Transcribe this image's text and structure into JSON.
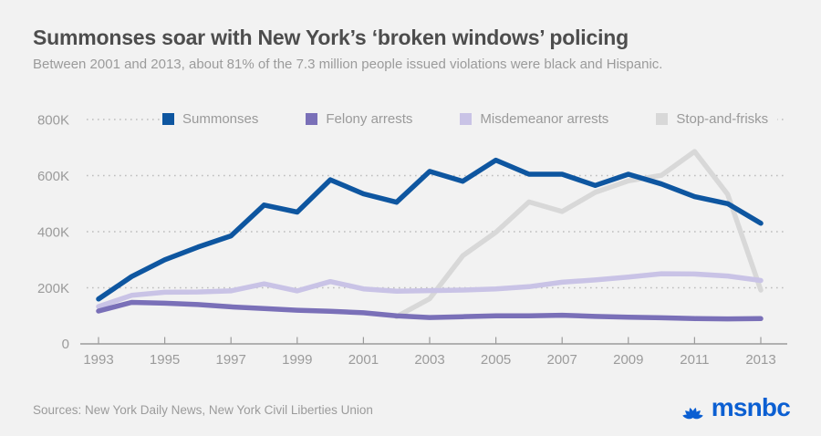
{
  "header": {
    "title": "Summonses soar with New York’s ‘broken windows’ policing",
    "subtitle": "Between 2001 and 2013, about 81% of the 7.3 million people issued violations were black and Hispanic."
  },
  "footer": {
    "sources": "Sources: New York Daily News, New York Civil Liberties Union",
    "brand": "msnbc",
    "brand_color": "#0b5fd2",
    "peacock_icon": "nbc-peacock"
  },
  "colors": {
    "background": "#f2f2f2",
    "title_text": "#4d4d4d",
    "muted_text": "#9b9b9b",
    "gridline": "#bdbdbd",
    "axis": "#9b9b9b"
  },
  "chart_data": {
    "type": "line",
    "title": "Summonses soar with New York’s ‘broken windows’ policing",
    "xlabel": "",
    "ylabel": "",
    "unit": "count (K = thousands)",
    "x_range": [
      1993,
      2013
    ],
    "ylim": [
      0,
      800000
    ],
    "grid": "horizontal-dotted",
    "legend_position": "top",
    "x_ticks": [
      1993,
      1995,
      1997,
      1999,
      2001,
      2003,
      2005,
      2007,
      2009,
      2011,
      2013
    ],
    "y_ticks": [
      {
        "value": 0,
        "label": "0"
      },
      {
        "value": 200,
        "label": "200K"
      },
      {
        "value": 400,
        "label": "400K"
      },
      {
        "value": 600,
        "label": "600K"
      },
      {
        "value": 800,
        "label": "800K"
      }
    ],
    "series": [
      {
        "name": "Summonses",
        "color": "#0e56a0",
        "start_year": 1993,
        "values_thousands": [
          160,
          240,
          300,
          345,
          385,
          495,
          470,
          585,
          535,
          505,
          615,
          580,
          655,
          605,
          605,
          565,
          605,
          570,
          525,
          500,
          430
        ]
      },
      {
        "name": "Felony arrests",
        "color": "#7a70b8",
        "start_year": 1993,
        "values_thousands": [
          117,
          148,
          145,
          140,
          132,
          126,
          120,
          116,
          111,
          100,
          94,
          97,
          100,
          100,
          102,
          98,
          95,
          93,
          90,
          89,
          90
        ]
      },
      {
        "name": "Misdemeanor arrests",
        "color": "#c9c3e6",
        "start_year": 1993,
        "values_thousands": [
          133,
          173,
          184,
          185,
          189,
          214,
          189,
          222,
          196,
          188,
          190,
          192,
          196,
          204,
          220,
          228,
          238,
          250,
          249,
          242,
          226
        ]
      },
      {
        "name": "Stop-and-frisks",
        "color": "#d8d8d8",
        "start_year": 2002,
        "values_thousands": [
          97,
          161,
          314,
          398,
          506,
          472,
          540,
          581,
          601,
          686,
          533,
          192
        ]
      }
    ]
  }
}
